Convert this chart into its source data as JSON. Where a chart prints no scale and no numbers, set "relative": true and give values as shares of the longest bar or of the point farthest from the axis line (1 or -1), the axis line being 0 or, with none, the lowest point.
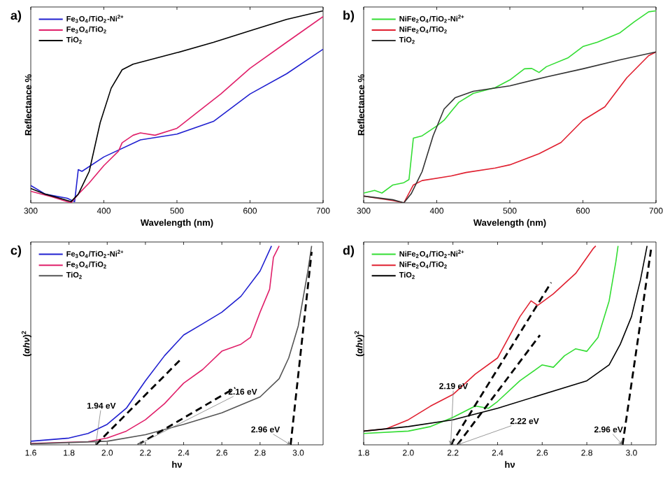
{
  "chart_data": [
    {
      "type": "line",
      "title": "a)",
      "xlabel": "Wavelength (nm)",
      "ylabel": "Reflectance %",
      "relative": true,
      "tick_labels": "x",
      "legend": "top left",
      "xlim": [
        300,
        700
      ],
      "xticks": [
        300,
        400,
        500,
        600,
        700
      ],
      "series": [
        {
          "name": "Fe$_{3}$O$_{4}$/TiO$_{2}$-Ni$^{2+}$",
          "color": "#2020d0",
          "x": [
            300,
            320,
            350,
            360,
            365,
            370,
            400,
            450,
            500,
            550,
            600,
            650,
            700
          ],
          "values": [
            0.09,
            0.045,
            0.024,
            0.006,
            0.173,
            0.164,
            0.239,
            0.328,
            0.358,
            0.424,
            0.567,
            0.672,
            0.8
          ]
        },
        {
          "name": "Fe$_{3}$O$_{4}$/TiO$_{2}$",
          "color": "#e0206a",
          "x": [
            300,
            330,
            355,
            365,
            380,
            400,
            420,
            425,
            440,
            450,
            470,
            500,
            530,
            560,
            600,
            650,
            700
          ],
          "values": [
            0.06,
            0.03,
            0.0,
            0.045,
            0.104,
            0.194,
            0.269,
            0.313,
            0.352,
            0.364,
            0.352,
            0.388,
            0.478,
            0.567,
            0.701,
            0.836,
            0.97
          ]
        },
        {
          "name": "TiO$_{2}$",
          "color": "#000000",
          "x": [
            300,
            320,
            340,
            355,
            365,
            380,
            395,
            410,
            425,
            440,
            500,
            550,
            600,
            650,
            700
          ],
          "values": [
            0.075,
            0.045,
            0.024,
            0.006,
            0.045,
            0.164,
            0.418,
            0.597,
            0.693,
            0.722,
            0.782,
            0.836,
            0.896,
            0.955,
            1.0
          ]
        }
      ]
    },
    {
      "type": "line",
      "title": "b)",
      "xlabel": "Wavelength (nm)",
      "ylabel": "Reflectance %",
      "relative": true,
      "tick_labels": "x",
      "legend": "top left",
      "xlim": [
        300,
        700
      ],
      "xticks": [
        300,
        400,
        500,
        600,
        700
      ],
      "series": [
        {
          "name": "NiFe$_{2}$O$_{4}$/TiO$_{2}$-Ni$^{2+}$",
          "color": "#33dd33",
          "x": [
            300,
            315,
            325,
            340,
            355,
            362,
            368,
            380,
            400,
            410,
            420,
            430,
            450,
            480,
            500,
            520,
            530,
            540,
            550,
            580,
            600,
            620,
            650,
            670,
            690,
            700
          ],
          "values": [
            0.051,
            0.065,
            0.051,
            0.093,
            0.105,
            0.121,
            0.337,
            0.349,
            0.4,
            0.43,
            0.477,
            0.523,
            0.57,
            0.6,
            0.64,
            0.698,
            0.7,
            0.679,
            0.709,
            0.756,
            0.814,
            0.837,
            0.884,
            0.942,
            0.995,
            1.0
          ]
        },
        {
          "name": "NiFe$_{2}$O$_{4}$/TiO$_{2}$",
          "color": "#e02030",
          "x": [
            300,
            340,
            355,
            368,
            380,
            420,
            440,
            480,
            500,
            540,
            570,
            600,
            630,
            660,
            690,
            700
          ],
          "values": [
            0.035,
            0.012,
            0.0,
            0.093,
            0.116,
            0.14,
            0.158,
            0.181,
            0.198,
            0.256,
            0.314,
            0.43,
            0.5,
            0.651,
            0.767,
            0.786
          ]
        },
        {
          "name": "TiO$_{2}$",
          "color": "#333333",
          "x": [
            300,
            340,
            355,
            365,
            380,
            395,
            410,
            425,
            450,
            500,
            550,
            600,
            650,
            700
          ],
          "values": [
            0.035,
            0.016,
            0.0,
            0.047,
            0.163,
            0.349,
            0.488,
            0.547,
            0.581,
            0.609,
            0.656,
            0.698,
            0.744,
            0.786
          ]
        }
      ]
    },
    {
      "type": "line",
      "title": "c)",
      "xlabel": "hν",
      "ylabel": "(*αhν*)$^{2}$",
      "relative": true,
      "tick_labels": "x",
      "legend": "top left",
      "xlim": [
        1.6,
        3.13
      ],
      "xticks": [
        {
          "value": 1.6,
          "label": "1.6"
        },
        {
          "value": 1.8,
          "label": "1.8"
        },
        {
          "value": 2.0,
          "label": "2.0"
        },
        {
          "value": 2.2,
          "label": "2.2"
        },
        {
          "value": 2.4,
          "label": "2.4"
        },
        {
          "value": 2.6,
          "label": "2.6"
        },
        {
          "value": 2.8,
          "label": "2.8"
        },
        {
          "value": 3.0,
          "label": "3.0"
        }
      ],
      "series": [
        {
          "name": "Fe$_{3}$O$_{4}$/TiO$_{2}$-Ni$^{2+}$",
          "color": "#2020d0",
          "x": [
            1.6,
            1.8,
            1.9,
            2.0,
            2.1,
            2.2,
            2.3,
            2.4,
            2.5,
            2.6,
            2.7,
            2.8,
            2.86
          ],
          "values": [
            0.018,
            0.034,
            0.057,
            0.103,
            0.184,
            0.322,
            0.448,
            0.552,
            0.609,
            0.667,
            0.747,
            0.874,
            1.0
          ]
        },
        {
          "name": "Fe$_{3}$O$_{4}$/TiO$_{2}$",
          "color": "#e0206a",
          "x": [
            1.6,
            1.9,
            2.0,
            2.1,
            2.2,
            2.3,
            2.4,
            2.5,
            2.6,
            2.7,
            2.75,
            2.8,
            2.85,
            2.87,
            2.9
          ],
          "values": [
            0.007,
            0.016,
            0.034,
            0.069,
            0.126,
            0.207,
            0.31,
            0.379,
            0.471,
            0.506,
            0.54,
            0.667,
            0.782,
            0.943,
            1.0
          ]
        },
        {
          "name": "TiO$_{2}$",
          "color": "#555555",
          "x": [
            1.6,
            2.0,
            2.2,
            2.4,
            2.6,
            2.8,
            2.9,
            2.95,
            3.0,
            3.05,
            3.07
          ],
          "values": [
            0.005,
            0.018,
            0.051,
            0.103,
            0.161,
            0.241,
            0.333,
            0.437,
            0.598,
            0.874,
            1.0
          ]
        },
        {
          "type": "line",
          "line_style": "dashed",
          "color": "#000000",
          "x": [
            1.94,
            2.38
          ],
          "values": [
            0.0,
            0.425
          ]
        },
        {
          "type": "line",
          "line_style": "dashed",
          "color": "#000000",
          "x": [
            2.16,
            2.67
          ],
          "values": [
            0.0,
            0.287
          ]
        },
        {
          "type": "line",
          "line_style": "dashed",
          "color": "#000000",
          "x": [
            2.96,
            3.07
          ],
          "values": [
            0.0,
            0.97
          ]
        }
      ],
      "annotations": [
        {
          "text": "1.94 eV",
          "x": 1.94,
          "y": 0.0
        },
        {
          "text": "2.16 eV",
          "x": 2.16,
          "y": 0.0
        },
        {
          "text": "2.96 eV",
          "x": 2.96,
          "y": 0.0
        }
      ]
    },
    {
      "type": "line",
      "title": "d)",
      "xlabel": "hν",
      "ylabel": "(*αhν*)$^{2}$",
      "relative": true,
      "tick_labels": "x",
      "legend": "top left",
      "xlim": [
        1.8,
        3.11
      ],
      "xticks": [
        {
          "value": 1.8,
          "label": "1.8"
        },
        {
          "value": 2.0,
          "label": "2.0"
        },
        {
          "value": 2.2,
          "label": "2.2"
        },
        {
          "value": 2.4,
          "label": "2.4"
        },
        {
          "value": 2.6,
          "label": "2.6"
        },
        {
          "value": 2.8,
          "label": "2.8"
        },
        {
          "value": 3.0,
          "label": "3.0"
        }
      ],
      "series": [
        {
          "name": "NiFe$_{2}$O$_{4}$/TiO$_{2}$-Ni$^{2+}$",
          "color": "#33dd33",
          "x": [
            1.8,
            2.0,
            2.1,
            2.2,
            2.3,
            2.36,
            2.4,
            2.5,
            2.6,
            2.65,
            2.7,
            2.75,
            2.8,
            2.85,
            2.9,
            2.93,
            2.94
          ],
          "values": [
            0.057,
            0.069,
            0.092,
            0.138,
            0.195,
            0.184,
            0.218,
            0.322,
            0.402,
            0.39,
            0.448,
            0.483,
            0.47,
            0.54,
            0.724,
            0.92,
            1.0
          ]
        },
        {
          "name": "NiFe$_{2}$O$_{4}$/TiO$_{2}$",
          "color": "#e02030",
          "x": [
            1.8,
            1.9,
            2.0,
            2.1,
            2.2,
            2.3,
            2.4,
            2.45,
            2.5,
            2.55,
            2.58,
            2.65,
            2.75,
            2.83,
            2.84
          ],
          "values": [
            0.069,
            0.08,
            0.126,
            0.195,
            0.253,
            0.356,
            0.437,
            0.54,
            0.644,
            0.724,
            0.701,
            0.759,
            0.862,
            0.989,
            1.0
          ]
        },
        {
          "name": "TiO$_{2}$",
          "color": "#000000",
          "x": [
            1.8,
            2.0,
            2.2,
            2.4,
            2.6,
            2.8,
            2.9,
            2.95,
            3.0,
            3.04,
            3.07
          ],
          "values": [
            0.069,
            0.092,
            0.126,
            0.184,
            0.253,
            0.322,
            0.402,
            0.506,
            0.644,
            0.828,
            1.0
          ]
        },
        {
          "type": "line",
          "line_style": "dashed",
          "color": "#000000",
          "x": [
            2.19,
            2.64
          ],
          "values": [
            0.0,
            0.816
          ]
        },
        {
          "type": "line",
          "line_style": "dashed",
          "color": "#000000",
          "x": [
            2.22,
            2.59
          ],
          "values": [
            0.0,
            0.552
          ]
        },
        {
          "type": "line",
          "line_style": "dashed",
          "color": "#000000",
          "x": [
            2.96,
            3.09
          ],
          "values": [
            0.0,
            1.0
          ]
        }
      ],
      "annotations": [
        {
          "text": "2.19 eV",
          "x": 2.19,
          "y": 0.0
        },
        {
          "text": "2.22 eV",
          "x": 2.22,
          "y": 0.0
        },
        {
          "text": "2.96 eV",
          "x": 2.96,
          "y": 0.0
        }
      ]
    }
  ]
}
